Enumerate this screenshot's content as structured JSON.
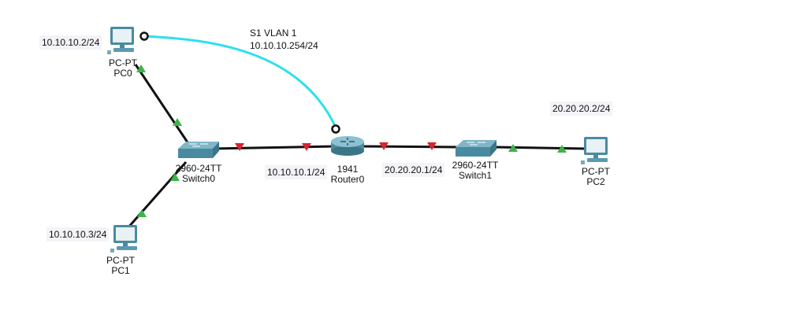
{
  "annotation": {
    "line1": "S1 VLAN 1",
    "line2": "10.10.10.254/24"
  },
  "devices": {
    "pc0": {
      "model": "PC-PT",
      "name": "PC0",
      "ip": "10.10.10.2/24"
    },
    "pc1": {
      "model": "PC-PT",
      "name": "PC1",
      "ip": "10.10.10.3/24"
    },
    "pc2": {
      "model": "PC-PT",
      "name": "PC2",
      "ip": "20.20.20.2/24"
    },
    "switch0": {
      "model": "2960-24TT",
      "name": "Switch0"
    },
    "switch1": {
      "model": "2960-24TT",
      "name": "Switch1"
    },
    "router0": {
      "model": "1941",
      "name": "Router0"
    }
  },
  "interfaces": {
    "router_left": "10.10.10.1/24",
    "router_right": "20.20.20.1/24"
  },
  "colors": {
    "link": "#111111",
    "console": "#2de0ec",
    "port_up": "#3cb44b",
    "port_down": "#d9232e",
    "device": "#4a8aa0",
    "ip_bg": "#f3f3f8"
  }
}
